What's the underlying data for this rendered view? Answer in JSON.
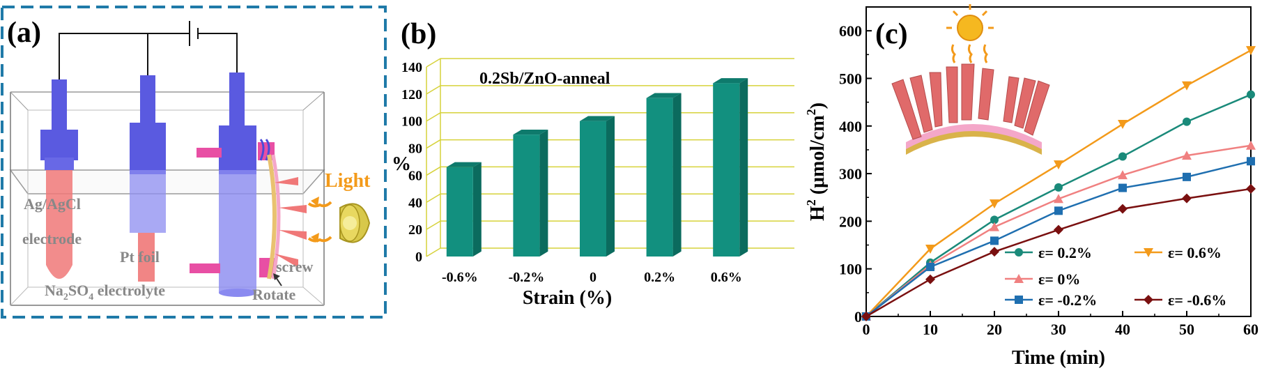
{
  "panels": {
    "a": {
      "label": "(a)",
      "texts": {
        "ag_agcl": "Ag/AgCl",
        "electrode": "electrode",
        "pt_foil": "Pt foil",
        "na2so4_main": "Na",
        "na2so4_sub": "2",
        "na2so4_tail": "SO",
        "na2so4_sub2": "4",
        "electrolyte": " electrolyte",
        "light": "Light",
        "screw": "screw",
        "rotate": "Rotate"
      }
    },
    "b": {
      "label": "(b)"
    },
    "c": {
      "label": "(c)"
    }
  },
  "chart_data": [
    {
      "type": "bar",
      "panel": "b",
      "title": "0.2Sb/ZnO-anneal",
      "xlabel": "Strain (%)",
      "ylabel": "%",
      "categories": [
        "-0.6%",
        "-0.2%",
        "0",
        "0.2%",
        "0.6%"
      ],
      "values": [
        66,
        90,
        100,
        117,
        128
      ],
      "ylim": [
        0,
        140
      ],
      "yticks": [
        "0",
        "20",
        "40",
        "60",
        "80",
        "100",
        "120",
        "140"
      ],
      "grid": true,
      "colors": {
        "bar_front": "#12907f",
        "bar_side": "#0b6b5e",
        "bar_top": "#0e7a6c",
        "grid": "#d6d23a"
      }
    },
    {
      "type": "line",
      "panel": "c",
      "xlabel": "Time (min)",
      "ylabel_main": "H",
      "ylabel_sup": "2",
      "ylabel_rest": " (μmol/cm",
      "ylabel_sup2": "2",
      "ylabel_end": ")",
      "xlim": [
        0,
        60
      ],
      "ylim": [
        0,
        650
      ],
      "xticks": [
        "0",
        "10",
        "20",
        "30",
        "40",
        "50",
        "60"
      ],
      "yticks": [
        "0",
        "100",
        "200",
        "300",
        "400",
        "500",
        "600"
      ],
      "legend_position": "bottom-right",
      "series": [
        {
          "name": "ε= 0.2%",
          "color": "#1a8a7a",
          "marker": "circle",
          "x": [
            0,
            10,
            20,
            30,
            40,
            50,
            60
          ],
          "y": [
            0,
            113,
            203,
            271,
            336,
            409,
            466
          ]
        },
        {
          "name": "ε= 0.6%",
          "color": "#f39a1a",
          "marker": "triangle-down",
          "x": [
            0,
            10,
            20,
            30,
            40,
            50,
            60
          ],
          "y": [
            0,
            142,
            237,
            319,
            404,
            485,
            559
          ]
        },
        {
          "name": "ε= 0%",
          "color": "#f08080",
          "marker": "triangle-up",
          "x": [
            0,
            10,
            20,
            30,
            40,
            50,
            60
          ],
          "y": [
            0,
            108,
            188,
            247,
            297,
            338,
            359
          ]
        },
        {
          "name": "ε= -0.2%",
          "color": "#1f6fb0",
          "marker": "square",
          "x": [
            0,
            10,
            20,
            30,
            40,
            50,
            60
          ],
          "y": [
            0,
            104,
            159,
            222,
            270,
            293,
            326
          ]
        },
        {
          "name": "ε= -0.6%",
          "color": "#7a1010",
          "marker": "diamond",
          "x": [
            0,
            10,
            20,
            30,
            40,
            50,
            60
          ],
          "y": [
            0,
            78,
            136,
            182,
            226,
            248,
            268
          ]
        }
      ]
    }
  ]
}
